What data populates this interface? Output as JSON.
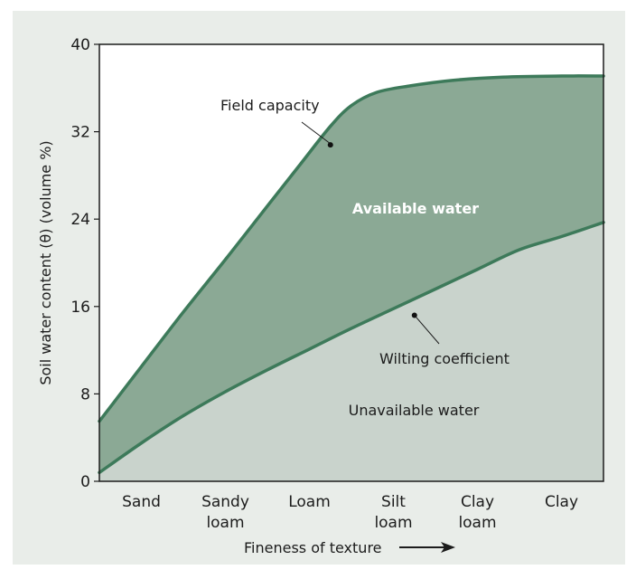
{
  "chart_data": {
    "type": "area",
    "categories": [
      "Sand",
      "Sandy loam",
      "Loam",
      "Silt loam",
      "Clay loam",
      "Clay"
    ],
    "category_lines": [
      [
        "Sand"
      ],
      [
        "Sandy",
        "loam"
      ],
      [
        "Loam"
      ],
      [
        "Silt",
        "loam"
      ],
      [
        "Clay",
        "loam"
      ],
      [
        "Clay"
      ]
    ],
    "x_range": [
      0,
      6
    ],
    "ylim": [
      0,
      40
    ],
    "yticks": [
      0,
      8,
      16,
      24,
      32,
      40
    ],
    "ylabel": "Soil water content (θ) (volume %)",
    "xlabel": "Fineness of texture",
    "series": [
      {
        "name": "Field capacity",
        "points": [
          [
            0,
            5.5
          ],
          [
            0.5,
            10.5
          ],
          [
            1,
            15.5
          ],
          [
            1.5,
            20.3
          ],
          [
            2,
            25.2
          ],
          [
            2.4,
            29.1
          ],
          [
            2.75,
            32.5
          ],
          [
            3,
            34.4
          ],
          [
            3.3,
            35.6
          ],
          [
            3.7,
            36.2
          ],
          [
            4.2,
            36.7
          ],
          [
            4.8,
            37.0
          ],
          [
            5.5,
            37.1
          ],
          [
            6,
            37.1
          ]
        ]
      },
      {
        "name": "Wilting coefficient",
        "points": [
          [
            0,
            0.8
          ],
          [
            0.5,
            3.5
          ],
          [
            1,
            6
          ],
          [
            1.5,
            8.2
          ],
          [
            2,
            10.2
          ],
          [
            2.5,
            12.1
          ],
          [
            3,
            14
          ],
          [
            3.5,
            15.8
          ],
          [
            4,
            17.6
          ],
          [
            4.5,
            19.4
          ],
          [
            5,
            21.2
          ],
          [
            5.5,
            22.4
          ],
          [
            6,
            23.7
          ]
        ]
      }
    ],
    "annotations": [
      {
        "text": "Field capacity",
        "point": [
          2.75,
          30.8
        ]
      },
      {
        "text": "Wilting coefficient",
        "point": [
          3.75,
          15.2
        ]
      }
    ],
    "regions": [
      {
        "text": "Available water",
        "between": [
          "Wilting coefficient",
          "Field capacity"
        ]
      },
      {
        "text": "Unavailable water",
        "between": [
          "axis",
          "Wilting coefficient"
        ]
      }
    ],
    "colors": {
      "available": "#8ba995",
      "unavailable": "#c9d3cc",
      "curve": "#3d7a5a",
      "plot_bg": "#ffffff",
      "figure_bg": "#e9ede9"
    },
    "grid": false,
    "legend": "none"
  }
}
